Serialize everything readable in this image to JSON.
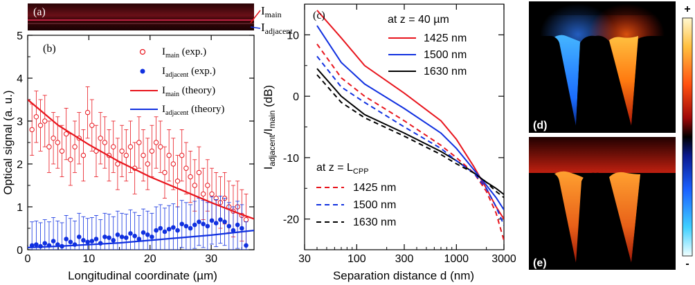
{
  "colors": {
    "main": "#e8141c",
    "adjacent": "#1030e0",
    "black": "#000000",
    "cbar_top": "#fff8d0",
    "cbar_bottom": "#f0ffff"
  },
  "panel_a": {
    "label": "(a)",
    "main_label": "I",
    "main_sub": "main",
    "adj_label": "I",
    "adj_sub": "adjacent"
  },
  "panel_b": {
    "label": "(b)",
    "ylabel": "Optical signal (a. u.)",
    "xlabel": "Longitudinal coordinate (µm)",
    "xlim": [
      0,
      37
    ],
    "ylim": [
      0,
      5
    ],
    "xticks": [
      "0",
      "10",
      "20",
      "30"
    ],
    "yticks": [
      "0",
      "1",
      "2",
      "3",
      "4",
      "5"
    ],
    "legend": [
      {
        "base": "I",
        "sub": "main",
        "rest": " (exp.)"
      },
      {
        "base": "I",
        "sub": "adjacent",
        "rest": " (exp.)"
      },
      {
        "base": "I",
        "sub": "main",
        "rest": " (theory)"
      },
      {
        "base": "I",
        "sub": "adjacent",
        "rest": " (theory)"
      }
    ]
  },
  "panel_c": {
    "label": "(c)",
    "ylabel_parts": [
      "I",
      "adjacent",
      "/I",
      "main",
      " (dB)"
    ],
    "xlabel": "Separation distance d (nm)",
    "xticks": [
      "30",
      "100",
      "300",
      "1000",
      "3000"
    ],
    "yticks": [
      "10",
      "0",
      "-10",
      "-20"
    ],
    "legend_title_1": "at z = 40 µm",
    "legend_title_2_base": "at z = L",
    "legend_title_2_sub": "CPP",
    "legend_solid": [
      "1425 nm",
      "1500 nm",
      "1630 nm"
    ],
    "legend_dashed": [
      "1425 nm",
      "1500 nm",
      "1630 nm"
    ]
  },
  "panel_d": {
    "label": "(d)"
  },
  "panel_e": {
    "label": "(e)"
  },
  "colorbar": {
    "plus": "+",
    "minus": "-"
  },
  "chart_data": [
    {
      "type": "scatter",
      "title": "(b)",
      "xlabel": "Longitudinal coordinate (µm)",
      "ylabel": "Optical signal (a. u.)",
      "xlim": [
        0,
        37
      ],
      "ylim": [
        0,
        5
      ],
      "series": [
        {
          "name": "I_main (exp.)",
          "marker": "open-circle",
          "x": [
            0.7,
            1.4,
            2.1,
            2.8,
            3.5,
            4.2,
            4.9,
            5.6,
            6.3,
            7.0,
            7.7,
            8.4,
            9.1,
            9.8,
            10.5,
            11.2,
            11.9,
            12.6,
            13.3,
            14.0,
            14.7,
            15.4,
            16.1,
            16.8,
            17.5,
            18.2,
            18.9,
            19.6,
            20.3,
            21.0,
            21.7,
            22.4,
            23.1,
            23.8,
            24.5,
            25.2,
            25.9,
            26.6,
            27.3,
            28.0,
            28.7,
            29.4,
            30.1,
            30.8,
            31.5,
            32.2,
            32.9,
            33.6,
            34.3,
            35.0,
            35.7
          ],
          "y": [
            2.8,
            3.1,
            2.9,
            3.0,
            2.4,
            2.6,
            2.5,
            2.3,
            2.7,
            2.1,
            2.4,
            2.6,
            2.2,
            3.2,
            2.9,
            2.3,
            2.6,
            2.5,
            2.2,
            2.4,
            2.0,
            2.3,
            2.2,
            2.4,
            1.9,
            2.5,
            2.2,
            2.0,
            2.3,
            2.5,
            2.4,
            1.8,
            2.2,
            2.0,
            1.6,
            2.2,
            1.9,
            1.7,
            1.5,
            1.8,
            1.3,
            1.5,
            1.3,
            1.2,
            1.1,
            1.2,
            1.0,
            0.9,
            1.0,
            0.8,
            0.7
          ],
          "err": 0.6
        },
        {
          "name": "I_adjacent (exp.)",
          "marker": "filled-circle",
          "x": [
            0.7,
            1.4,
            2.1,
            2.8,
            3.5,
            4.2,
            4.9,
            5.6,
            6.3,
            7.0,
            7.7,
            8.4,
            9.1,
            9.8,
            10.5,
            11.2,
            11.9,
            12.6,
            13.3,
            14.0,
            14.7,
            15.4,
            16.1,
            16.8,
            17.5,
            18.2,
            18.9,
            19.6,
            20.3,
            21.0,
            21.7,
            22.4,
            23.1,
            23.8,
            24.5,
            25.2,
            25.9,
            26.6,
            27.3,
            28.0,
            28.7,
            29.4,
            30.1,
            30.8,
            31.5,
            32.2,
            32.9,
            33.6,
            34.3,
            35.0,
            35.7
          ],
          "y": [
            0.1,
            0.12,
            0.08,
            0.15,
            0.1,
            0.2,
            0.12,
            0.08,
            0.25,
            0.18,
            0.12,
            0.3,
            0.22,
            0.18,
            0.2,
            0.25,
            0.15,
            0.3,
            0.28,
            0.22,
            0.35,
            0.3,
            0.28,
            0.38,
            0.32,
            0.25,
            0.4,
            0.35,
            0.3,
            0.45,
            0.5,
            0.42,
            0.48,
            0.52,
            0.45,
            0.6,
            0.55,
            0.5,
            0.58,
            0.65,
            0.6,
            0.55,
            0.68,
            0.62,
            0.7,
            0.65,
            0.55,
            0.45,
            0.58,
            0.5,
            0.1
          ],
          "err": 0.55
        },
        {
          "name": "I_main (theory)",
          "type": "line",
          "x": [
            0,
            5,
            10,
            15,
            20,
            25,
            30,
            35,
            37
          ],
          "y": [
            3.5,
            2.9,
            2.45,
            2.05,
            1.7,
            1.4,
            1.1,
            0.82,
            0.72
          ]
        },
        {
          "name": "I_adjacent (theory)",
          "type": "line",
          "x": [
            0,
            5,
            10,
            15,
            20,
            25,
            30,
            35,
            37
          ],
          "y": [
            0.05,
            0.08,
            0.12,
            0.16,
            0.22,
            0.28,
            0.34,
            0.42,
            0.45
          ]
        }
      ]
    },
    {
      "type": "line",
      "title": "(c)",
      "xlabel": "Separation distance d (nm)",
      "ylabel": "I_adjacent/I_main (dB)",
      "xscale": "log",
      "xlim": [
        30,
        3000
      ],
      "ylim": [
        -25,
        15
      ],
      "x": [
        40,
        70,
        120,
        300,
        700,
        1000,
        1500,
        2000,
        2500,
        3000
      ],
      "series": [
        {
          "name": "1425 nm (z = 40 µm)",
          "style": "solid",
          "color": "main",
          "values": [
            14,
            9.5,
            5,
            0.5,
            -4,
            -7,
            -11.5,
            -15,
            -18,
            -20
          ]
        },
        {
          "name": "1500 nm (z = 40 µm)",
          "style": "solid",
          "color": "adjacent",
          "values": [
            11.5,
            5.5,
            2,
            -2,
            -6,
            -8.5,
            -12,
            -14.5,
            -16.5,
            -18.5
          ]
        },
        {
          "name": "1630 nm (z = 40 µm)",
          "style": "solid",
          "color": "black",
          "values": [
            4.5,
            0,
            -3,
            -6,
            -9,
            -10.5,
            -12.5,
            -14,
            -15,
            -16
          ]
        },
        {
          "name": "1425 nm (z = L_CPP)",
          "style": "dashed",
          "color": "main",
          "values": [
            8.5,
            3,
            0,
            -4,
            -8,
            -10,
            -12.5,
            -15.5,
            -19,
            -23.5
          ]
        },
        {
          "name": "1500 nm (z = L_CPP)",
          "style": "dashed",
          "color": "adjacent",
          "values": [
            6.5,
            1.5,
            -1,
            -5,
            -8.5,
            -10.5,
            -12.5,
            -15,
            -18,
            -21
          ]
        },
        {
          "name": "1630 nm (z = L_CPP)",
          "style": "dashed",
          "color": "black",
          "values": [
            3.5,
            -1,
            -3.5,
            -6.5,
            -9.5,
            -11,
            -12.5,
            -14,
            -15.5,
            -16.5
          ]
        }
      ]
    }
  ]
}
